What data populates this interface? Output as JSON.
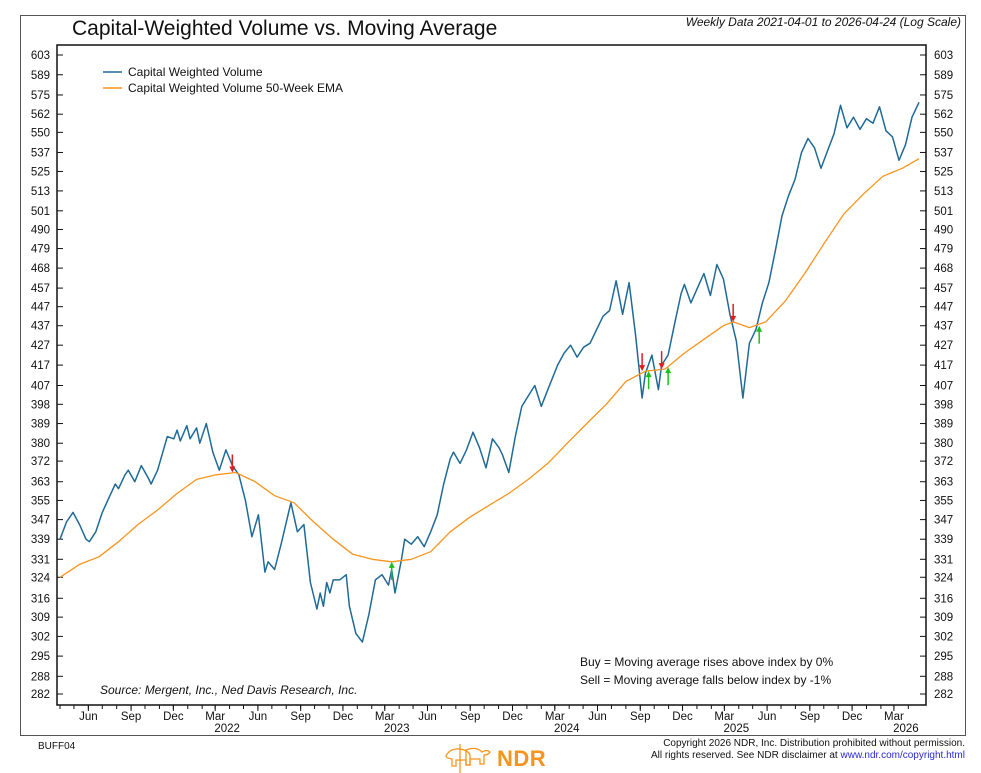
{
  "header": {
    "title": "Capital-Weighted Volume vs. Moving Average",
    "subtitle": "Weekly Data 2021-04-01 to 2026-04-24 (Log Scale)"
  },
  "footer": {
    "code": "BUFF04",
    "copyright_line1": "Copyright 2026 NDR, Inc. Distribution prohibited without permission.",
    "copyright_line2_prefix": "All rights reserved. See NDR disclaimer at ",
    "copyright_link": "www.ndr.com/copyright.html",
    "logo_text": "NDR",
    "logo_color": "#f7941d"
  },
  "chart_data": {
    "type": "line",
    "title": "Capital-Weighted Volume vs. Moving Average",
    "scale": "log",
    "ylim": [
      279,
      607
    ],
    "y_ticks": [
      603,
      589,
      575,
      562,
      550,
      537,
      525,
      513,
      501,
      490,
      479,
      468,
      457,
      447,
      437,
      427,
      417,
      407,
      398,
      389,
      380,
      372,
      363,
      355,
      347,
      339,
      331,
      324,
      316,
      309,
      302,
      295,
      288,
      282
    ],
    "x_range": [
      "2021-04-01",
      "2026-04-24"
    ],
    "x_ticks": [
      {
        "date": "2021-06-01",
        "label": "Jun",
        "year": ""
      },
      {
        "date": "2021-09-01",
        "label": "Sep",
        "year": ""
      },
      {
        "date": "2021-12-01",
        "label": "Dec",
        "year": ""
      },
      {
        "date": "2022-03-01",
        "label": "Mar",
        "year": "2022"
      },
      {
        "date": "2022-06-01",
        "label": "Jun",
        "year": ""
      },
      {
        "date": "2022-09-01",
        "label": "Sep",
        "year": ""
      },
      {
        "date": "2022-12-01",
        "label": "Dec",
        "year": ""
      },
      {
        "date": "2023-03-01",
        "label": "Mar",
        "year": "2023"
      },
      {
        "date": "2023-06-01",
        "label": "Jun",
        "year": ""
      },
      {
        "date": "2023-09-01",
        "label": "Sep",
        "year": ""
      },
      {
        "date": "2023-12-01",
        "label": "Dec",
        "year": ""
      },
      {
        "date": "2024-03-01",
        "label": "Mar",
        "year": "2024"
      },
      {
        "date": "2024-06-01",
        "label": "Jun",
        "year": ""
      },
      {
        "date": "2024-09-01",
        "label": "Sep",
        "year": ""
      },
      {
        "date": "2024-12-01",
        "label": "Dec",
        "year": ""
      },
      {
        "date": "2025-03-01",
        "label": "Mar",
        "year": "2025"
      },
      {
        "date": "2025-06-01",
        "label": "Jun",
        "year": ""
      },
      {
        "date": "2025-09-01",
        "label": "Sep",
        "year": ""
      },
      {
        "date": "2025-12-01",
        "label": "Dec",
        "year": ""
      },
      {
        "date": "2026-03-01",
        "label": "Mar",
        "year": "2026"
      }
    ],
    "legend": {
      "placement": "top-left",
      "entries": [
        {
          "name": "Capital Weighted Volume",
          "color": "#1f6a96"
        },
        {
          "name": "Capital Weighted Volume 50-Week EMA",
          "color": "#f7941d"
        }
      ]
    },
    "series": [
      {
        "name": "Capital Weighted Volume",
        "color": "#1f6a96",
        "points": [
          [
            "2021-04-01",
            339
          ],
          [
            "2021-04-15",
            346
          ],
          [
            "2021-04-29",
            350
          ],
          [
            "2021-05-13",
            345
          ],
          [
            "2021-05-27",
            339
          ],
          [
            "2021-06-03",
            338
          ],
          [
            "2021-06-17",
            342
          ],
          [
            "2021-07-01",
            350
          ],
          [
            "2021-07-15",
            356
          ],
          [
            "2021-07-29",
            362
          ],
          [
            "2021-08-05",
            360
          ],
          [
            "2021-08-19",
            366
          ],
          [
            "2021-08-26",
            368
          ],
          [
            "2021-09-09",
            363
          ],
          [
            "2021-09-23",
            370
          ],
          [
            "2021-10-07",
            365
          ],
          [
            "2021-10-14",
            362
          ],
          [
            "2021-10-28",
            368
          ],
          [
            "2021-11-11",
            378
          ],
          [
            "2021-11-18",
            383
          ],
          [
            "2021-12-02",
            382
          ],
          [
            "2021-12-09",
            386
          ],
          [
            "2021-12-16",
            381
          ],
          [
            "2021-12-30",
            388
          ],
          [
            "2022-01-06",
            382
          ],
          [
            "2022-01-20",
            387
          ],
          [
            "2022-01-27",
            380
          ],
          [
            "2022-02-10",
            389
          ],
          [
            "2022-02-24",
            376
          ],
          [
            "2022-03-10",
            368
          ],
          [
            "2022-03-24",
            377
          ],
          [
            "2022-04-07",
            370
          ],
          [
            "2022-04-21",
            366
          ],
          [
            "2022-05-05",
            355
          ],
          [
            "2022-05-19",
            340
          ],
          [
            "2022-06-02",
            349
          ],
          [
            "2022-06-16",
            326
          ],
          [
            "2022-06-23",
            330
          ],
          [
            "2022-07-07",
            327
          ],
          [
            "2022-07-21",
            337
          ],
          [
            "2022-08-11",
            354
          ],
          [
            "2022-08-25",
            342
          ],
          [
            "2022-09-08",
            345
          ],
          [
            "2022-09-22",
            322
          ],
          [
            "2022-10-06",
            312
          ],
          [
            "2022-10-13",
            318
          ],
          [
            "2022-10-20",
            313
          ],
          [
            "2022-10-27",
            322
          ],
          [
            "2022-11-03",
            318
          ],
          [
            "2022-11-10",
            323
          ],
          [
            "2022-11-24",
            323
          ],
          [
            "2022-12-08",
            325
          ],
          [
            "2022-12-15",
            313
          ],
          [
            "2022-12-29",
            303
          ],
          [
            "2023-01-12",
            300
          ],
          [
            "2023-01-26",
            310
          ],
          [
            "2023-02-09",
            323
          ],
          [
            "2023-02-23",
            325
          ],
          [
            "2023-03-09",
            321
          ],
          [
            "2023-03-16",
            327
          ],
          [
            "2023-03-23",
            318
          ],
          [
            "2023-04-06",
            331
          ],
          [
            "2023-04-13",
            339
          ],
          [
            "2023-04-27",
            337
          ],
          [
            "2023-05-11",
            340
          ],
          [
            "2023-05-25",
            336
          ],
          [
            "2023-06-08",
            342
          ],
          [
            "2023-06-22",
            349
          ],
          [
            "2023-07-06",
            362
          ],
          [
            "2023-07-20",
            373
          ],
          [
            "2023-07-27",
            376
          ],
          [
            "2023-08-10",
            371
          ],
          [
            "2023-08-24",
            377
          ],
          [
            "2023-09-07",
            385
          ],
          [
            "2023-09-21",
            378
          ],
          [
            "2023-10-05",
            369
          ],
          [
            "2023-10-19",
            382
          ],
          [
            "2023-11-02",
            378
          ],
          [
            "2023-11-09",
            375
          ],
          [
            "2023-11-23",
            367
          ],
          [
            "2023-12-07",
            383
          ],
          [
            "2023-12-21",
            397
          ],
          [
            "2024-01-04",
            402
          ],
          [
            "2024-01-18",
            407
          ],
          [
            "2024-02-01",
            397
          ],
          [
            "2024-02-15",
            405
          ],
          [
            "2024-03-07",
            417
          ],
          [
            "2024-03-21",
            423
          ],
          [
            "2024-04-04",
            427
          ],
          [
            "2024-04-18",
            421
          ],
          [
            "2024-05-02",
            426
          ],
          [
            "2024-05-16",
            428
          ],
          [
            "2024-05-30",
            435
          ],
          [
            "2024-06-13",
            442
          ],
          [
            "2024-06-27",
            445
          ],
          [
            "2024-07-11",
            461
          ],
          [
            "2024-07-25",
            443
          ],
          [
            "2024-08-08",
            460
          ],
          [
            "2024-08-22",
            432
          ],
          [
            "2024-09-05",
            401
          ],
          [
            "2024-09-12",
            413
          ],
          [
            "2024-09-26",
            422
          ],
          [
            "2024-10-10",
            405
          ],
          [
            "2024-10-17",
            417
          ],
          [
            "2024-10-31",
            422
          ],
          [
            "2024-11-14",
            438
          ],
          [
            "2024-11-28",
            454
          ],
          [
            "2024-12-05",
            459
          ],
          [
            "2024-12-19",
            449
          ],
          [
            "2025-01-02",
            457
          ],
          [
            "2025-01-16",
            465
          ],
          [
            "2025-01-30",
            453
          ],
          [
            "2025-02-13",
            470
          ],
          [
            "2025-02-27",
            462
          ],
          [
            "2025-03-13",
            443
          ],
          [
            "2025-03-27",
            429
          ],
          [
            "2025-04-10",
            401
          ],
          [
            "2025-04-24",
            428
          ],
          [
            "2025-05-08",
            435
          ],
          [
            "2025-05-22",
            449
          ],
          [
            "2025-06-05",
            460
          ],
          [
            "2025-06-19",
            478
          ],
          [
            "2025-07-03",
            498
          ],
          [
            "2025-07-17",
            510
          ],
          [
            "2025-07-31",
            520
          ],
          [
            "2025-08-14",
            537
          ],
          [
            "2025-08-28",
            546
          ],
          [
            "2025-09-11",
            540
          ],
          [
            "2025-09-25",
            527
          ],
          [
            "2025-10-09",
            538
          ],
          [
            "2025-10-23",
            549
          ],
          [
            "2025-11-06",
            568
          ],
          [
            "2025-11-20",
            553
          ],
          [
            "2025-12-04",
            560
          ],
          [
            "2025-12-18",
            552
          ],
          [
            "2026-01-01",
            559
          ],
          [
            "2026-01-15",
            556
          ],
          [
            "2026-01-29",
            567
          ],
          [
            "2026-02-12",
            551
          ],
          [
            "2026-02-26",
            547
          ],
          [
            "2026-03-12",
            532
          ],
          [
            "2026-03-26",
            542
          ],
          [
            "2026-04-09",
            560
          ],
          [
            "2026-04-24",
            570
          ]
        ]
      },
      {
        "name": "Capital Weighted Volume 50-Week EMA",
        "color": "#f7941d",
        "points": [
          [
            "2021-04-01",
            324
          ],
          [
            "2021-05-13",
            329
          ],
          [
            "2021-06-24",
            332
          ],
          [
            "2021-08-05",
            338
          ],
          [
            "2021-09-16",
            345
          ],
          [
            "2021-10-28",
            351
          ],
          [
            "2021-12-09",
            358
          ],
          [
            "2022-01-20",
            364
          ],
          [
            "2022-03-03",
            366
          ],
          [
            "2022-04-14",
            367
          ],
          [
            "2022-05-26",
            363
          ],
          [
            "2022-07-07",
            357
          ],
          [
            "2022-08-18",
            354
          ],
          [
            "2022-09-29",
            346
          ],
          [
            "2022-11-10",
            339
          ],
          [
            "2022-12-22",
            333
          ],
          [
            "2023-02-02",
            331
          ],
          [
            "2023-03-16",
            330
          ],
          [
            "2023-04-27",
            331
          ],
          [
            "2023-06-08",
            334
          ],
          [
            "2023-07-20",
            342
          ],
          [
            "2023-08-31",
            348
          ],
          [
            "2023-10-12",
            353
          ],
          [
            "2023-11-23",
            358
          ],
          [
            "2024-01-04",
            364
          ],
          [
            "2024-02-15",
            371
          ],
          [
            "2024-03-28",
            380
          ],
          [
            "2024-05-09",
            389
          ],
          [
            "2024-06-20",
            398
          ],
          [
            "2024-08-01",
            409
          ],
          [
            "2024-09-12",
            414
          ],
          [
            "2024-10-24",
            415
          ],
          [
            "2024-12-05",
            423
          ],
          [
            "2025-01-16",
            430
          ],
          [
            "2025-02-27",
            437
          ],
          [
            "2025-03-20",
            439
          ],
          [
            "2025-04-24",
            436
          ],
          [
            "2025-05-29",
            439
          ],
          [
            "2025-07-10",
            450
          ],
          [
            "2025-08-21",
            465
          ],
          [
            "2025-10-02",
            482
          ],
          [
            "2025-11-13",
            499
          ],
          [
            "2025-12-25",
            511
          ],
          [
            "2026-02-05",
            522
          ],
          [
            "2026-03-19",
            527
          ],
          [
            "2026-04-24",
            533
          ]
        ]
      }
    ],
    "signals": [
      {
        "type": "sell",
        "date": "2022-04-07",
        "value": 367,
        "color": "#e41a1c"
      },
      {
        "type": "buy",
        "date": "2023-03-16",
        "value": 330,
        "color": "#19c219"
      },
      {
        "type": "sell",
        "date": "2024-09-05",
        "value": 414,
        "color": "#e41a1c"
      },
      {
        "type": "buy",
        "date": "2024-09-19",
        "value": 414,
        "color": "#19c219"
      },
      {
        "type": "sell",
        "date": "2024-10-17",
        "value": 415,
        "color": "#e41a1c"
      },
      {
        "type": "buy",
        "date": "2024-10-31",
        "value": 416,
        "color": "#19c219"
      },
      {
        "type": "sell",
        "date": "2025-03-20",
        "value": 439,
        "color": "#e41a1c"
      },
      {
        "type": "buy",
        "date": "2025-05-15",
        "value": 437,
        "color": "#19c219"
      }
    ],
    "annotations": {
      "buy_rule": "Buy = Moving average rises above index by 0%",
      "sell_rule": "Sell = Moving average falls below index by -1%",
      "source": "Source:   Mergent, Inc., Ned Davis Research, Inc."
    }
  }
}
